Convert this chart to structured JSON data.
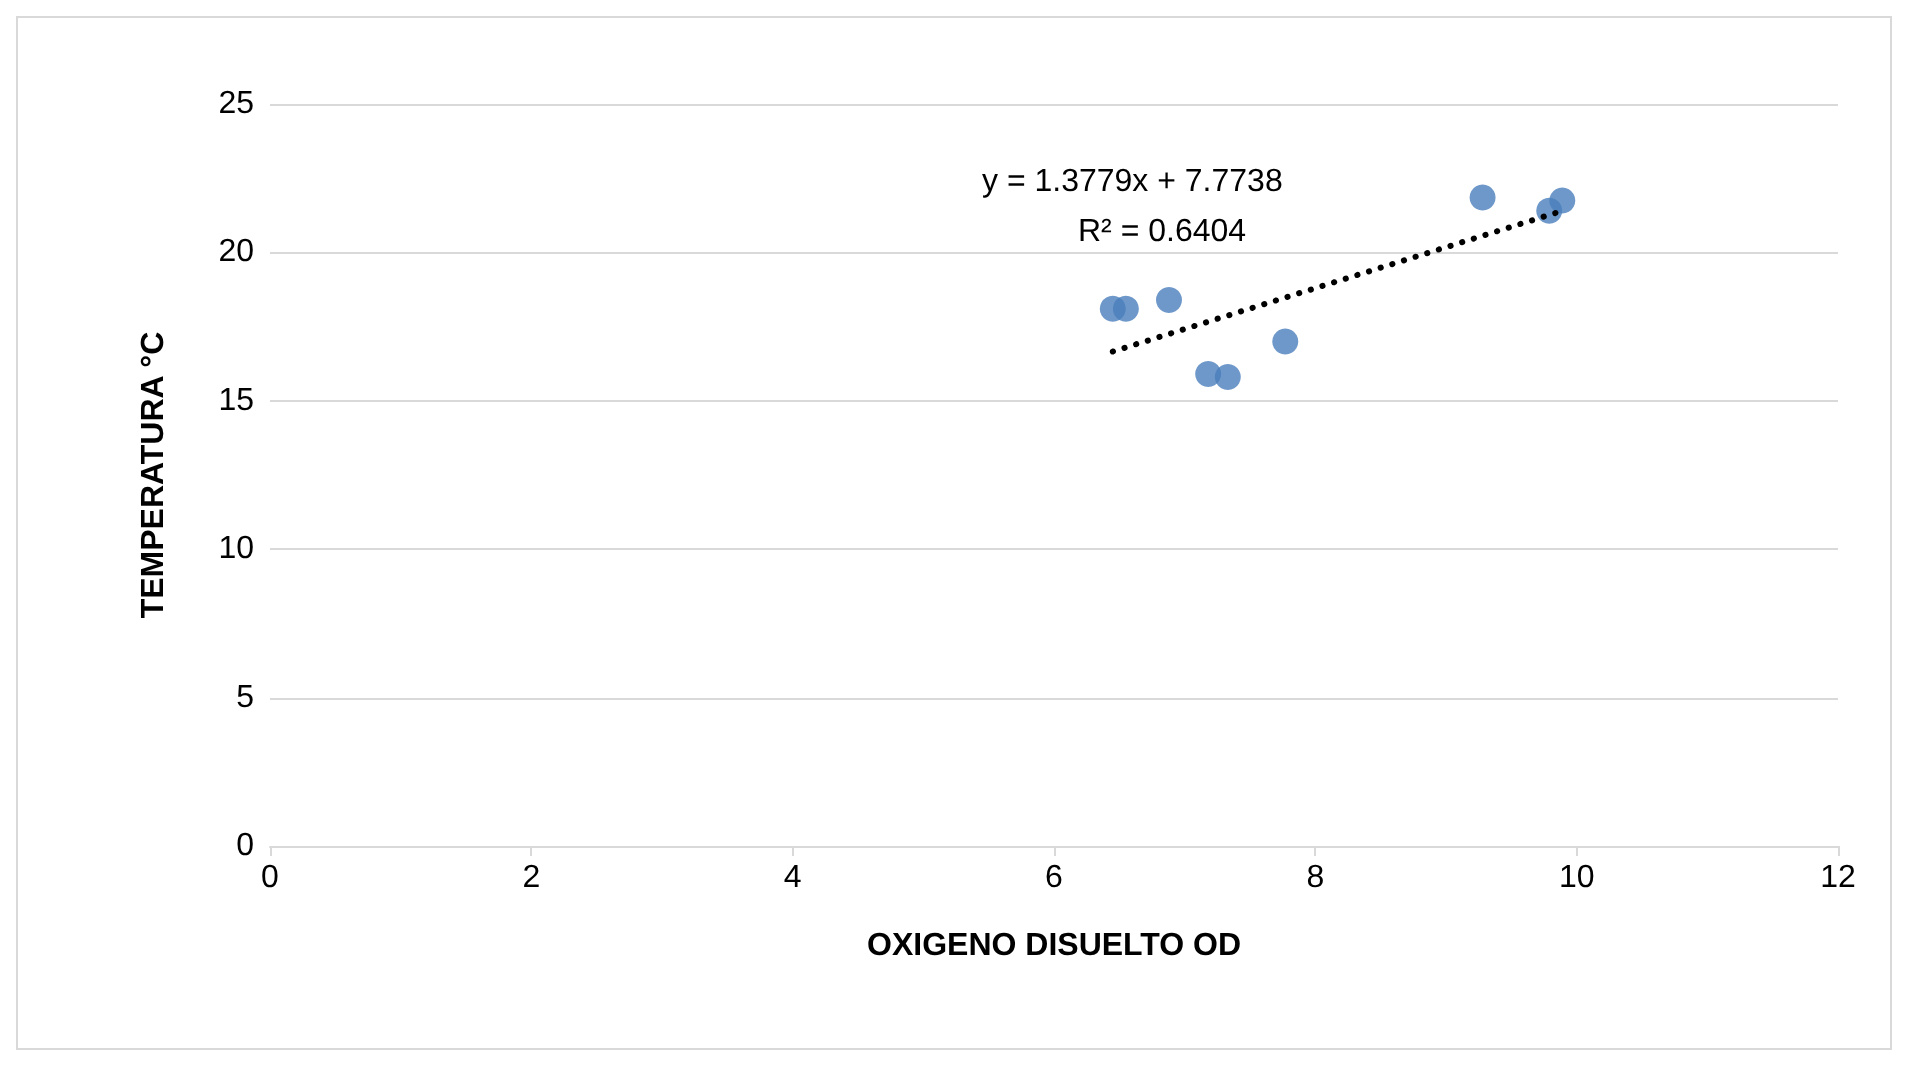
{
  "chart_data": {
    "type": "scatter",
    "xlabel": "OXIGENO DISUELTO OD",
    "ylabel": "TEMPERATURA °C",
    "x": [
      6.45,
      6.55,
      6.88,
      7.18,
      7.33,
      7.77,
      9.28,
      9.79,
      9.89
    ],
    "series": [
      {
        "color": "#4a7ebb",
        "values": [
          18.1,
          18.1,
          18.4,
          15.9,
          15.8,
          17.0,
          21.85,
          21.4,
          21.75
        ],
        "marker": "circle"
      },
      {
        "type": "line",
        "color": "#000000",
        "x": [
          6.45,
          9.89
        ],
        "values": [
          16.66,
          21.4
        ],
        "line_style": "dotted",
        "marker": "none"
      }
    ],
    "annotations": [
      "y = 1.3779x + 7.7738",
      "R² = 0.6404"
    ],
    "xlim": [
      0,
      12
    ],
    "xticks": [
      0,
      2,
      4,
      6,
      8,
      10,
      12
    ],
    "ylim": [
      0,
      25
    ],
    "yticks": [
      0,
      5,
      10,
      15,
      20,
      25
    ],
    "grid": "y"
  }
}
